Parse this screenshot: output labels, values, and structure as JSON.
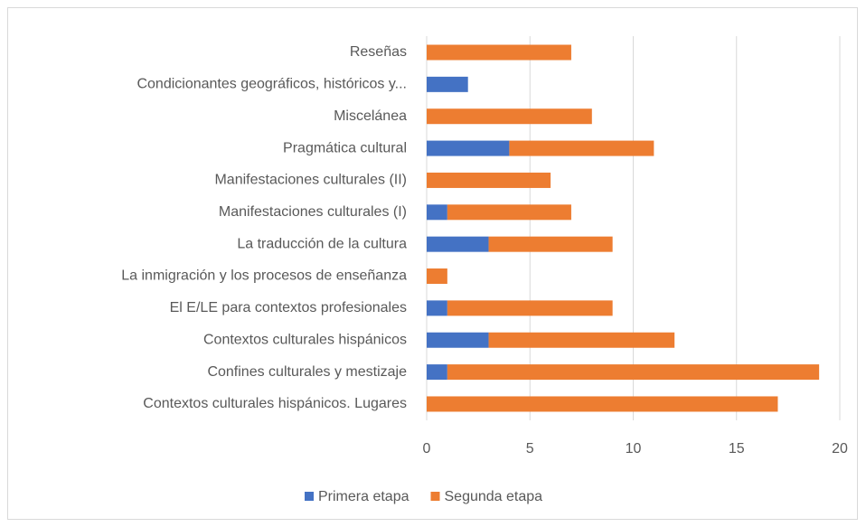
{
  "chart_data": {
    "type": "stacked_barh",
    "categories": [
      "Reseñas",
      "Condicionantes geográficos, históricos y...",
      "Miscelánea",
      "Pragmática cultural",
      "Manifestaciones culturales (II)",
      "Manifestaciones culturales (I)",
      "La traducción de la cultura",
      "La inmigración y los procesos de enseñanza",
      "El E/LE para contextos profesionales",
      "Contextos culturales hispánicos",
      "Confines culturales y mestizaje",
      "Contextos culturales hispánicos. Lugares"
    ],
    "series": [
      {
        "name": "Primera etapa",
        "color": "#4472c4",
        "values": [
          0,
          2,
          0,
          4,
          0,
          1,
          3,
          0,
          1,
          3,
          1,
          0
        ]
      },
      {
        "name": "Segunda etapa",
        "color": "#ed7d31",
        "values": [
          7,
          0,
          8,
          7,
          6,
          6,
          6,
          1,
          8,
          9,
          18,
          17
        ]
      }
    ],
    "xlim": [
      0,
      20
    ],
    "xticks": [
      0,
      5,
      10,
      15,
      20
    ],
    "grid": true,
    "legend": "bottom"
  }
}
